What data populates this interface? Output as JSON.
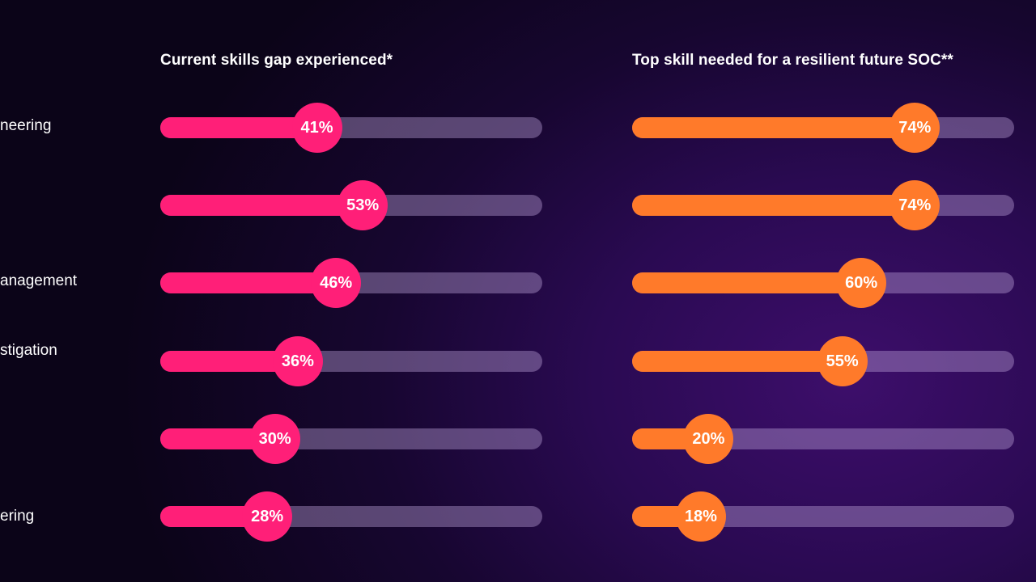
{
  "row_labels": [
    "neering",
    "",
    "anagement",
    "stigation",
    "",
    "ering"
  ],
  "colors": {
    "left": "#ff1f78",
    "right": "#ff7a2a"
  },
  "chart_data": [
    {
      "type": "bar",
      "title": "Current skills gap experienced*",
      "categories": [
        "neering",
        "",
        "anagement",
        "stigation",
        "",
        "ering"
      ],
      "values": [
        41,
        53,
        46,
        36,
        30,
        28
      ],
      "value_labels": [
        "41%",
        "53%",
        "46%",
        "36%",
        "30%",
        "28%"
      ],
      "ylim": [
        0,
        100
      ]
    },
    {
      "type": "bar",
      "title": "Top skill needed for a resilient future SOC**",
      "categories": [
        "neering",
        "",
        "anagement",
        "stigation",
        "",
        "ering"
      ],
      "values": [
        74,
        74,
        60,
        55,
        20,
        18
      ],
      "value_labels": [
        "74%",
        "74%",
        "60%",
        "55%",
        "20%",
        "18%"
      ],
      "ylim": [
        0,
        100
      ]
    }
  ]
}
